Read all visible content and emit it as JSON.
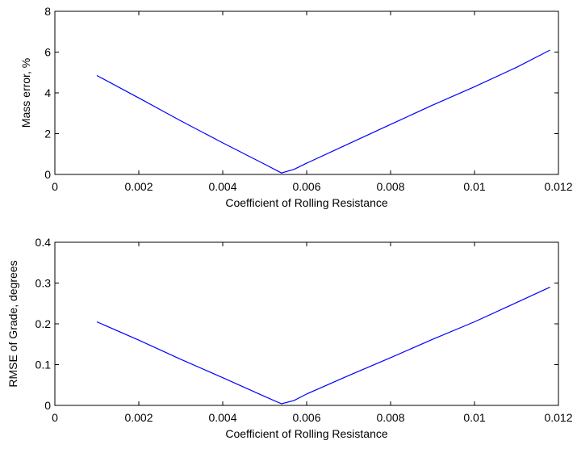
{
  "chart_data": [
    {
      "type": "line",
      "title": "",
      "xlabel": "Coefficient of Rolling Resistance",
      "ylabel": "Mass error, %",
      "xlim": [
        0,
        0.012
      ],
      "ylim": [
        0,
        8
      ],
      "xticks": [
        0,
        0.002,
        0.004,
        0.006,
        0.008,
        0.01,
        0.012
      ],
      "xtick_labels": [
        "0",
        "0.002",
        "0.004",
        "0.006",
        "0.008",
        "0.01",
        "0.012"
      ],
      "yticks": [
        0,
        2,
        4,
        6,
        8
      ],
      "ytick_labels": [
        "0",
        "2",
        "4",
        "6",
        "8"
      ],
      "grid": false,
      "color": "#0000ff",
      "series": [
        {
          "x": [
            0.001,
            0.002,
            0.003,
            0.004,
            0.005,
            0.0054,
            0.0057,
            0.006,
            0.007,
            0.008,
            0.009,
            0.01,
            0.011,
            0.0118
          ],
          "values": [
            4.85,
            3.75,
            2.63,
            1.55,
            0.5,
            0.07,
            0.25,
            0.55,
            1.5,
            2.45,
            3.4,
            4.3,
            5.25,
            6.1
          ]
        }
      ]
    },
    {
      "type": "line",
      "title": "",
      "xlabel": "Coefficient of Rolling Resistance",
      "ylabel": "RMSE of Grade, degrees",
      "xlim": [
        0,
        0.012
      ],
      "ylim": [
        0,
        0.4
      ],
      "xticks": [
        0,
        0.002,
        0.004,
        0.006,
        0.008,
        0.01,
        0.012
      ],
      "xtick_labels": [
        "0",
        "0.002",
        "0.004",
        "0.006",
        "0.008",
        "0.01",
        "0.012"
      ],
      "yticks": [
        0,
        0.1,
        0.2,
        0.3,
        0.4
      ],
      "ytick_labels": [
        "0",
        "0.1",
        "0.2",
        "0.3",
        "0.4"
      ],
      "grid": false,
      "color": "#0000ff",
      "series": [
        {
          "x": [
            0.001,
            0.002,
            0.003,
            0.004,
            0.005,
            0.0054,
            0.0057,
            0.006,
            0.007,
            0.008,
            0.009,
            0.01,
            0.011,
            0.0118
          ],
          "values": [
            0.205,
            0.16,
            0.113,
            0.068,
            0.022,
            0.004,
            0.012,
            0.028,
            0.073,
            0.117,
            0.162,
            0.205,
            0.252,
            0.29
          ]
        }
      ]
    }
  ]
}
